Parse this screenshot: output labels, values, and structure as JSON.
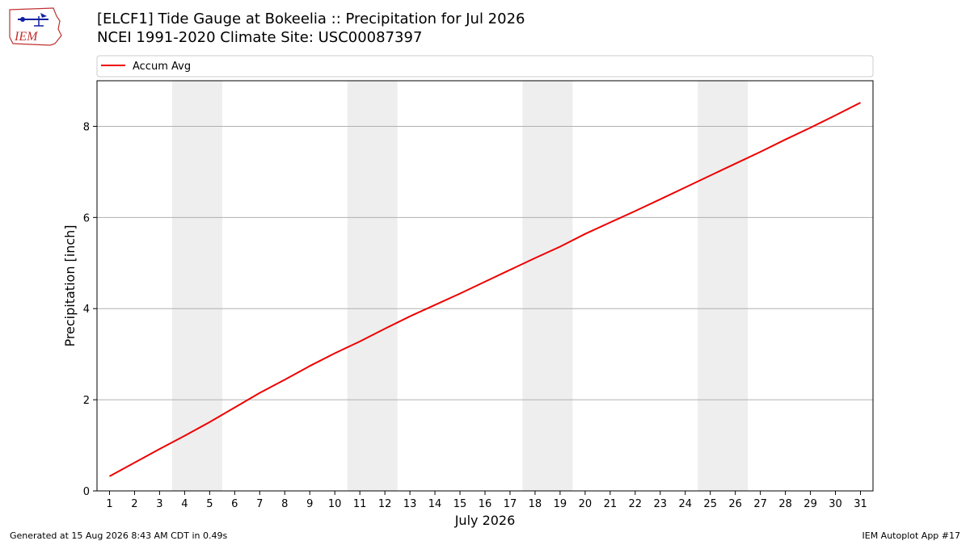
{
  "header": {
    "title_line1": "[ELCF1] Tide Gauge at Bokeelia :: Precipitation for Jul 2026",
    "title_line2": "NCEI 1991-2020 Climate Site: USC00087397"
  },
  "logo": {
    "text": "IEM",
    "icon": "iem-logo-icon"
  },
  "footer": {
    "generated": "Generated at 15 Aug 2026 8:43 AM CDT in 0.49s",
    "app": "IEM Autoplot App #17"
  },
  "colors": {
    "series": "#ee0000",
    "weekend_band": "#eeeeee",
    "grid": "#b0b0b0"
  },
  "chart_data": {
    "type": "line",
    "xlabel": "July 2026",
    "ylabel": "Precipitation [inch]",
    "xlim": [
      0.5,
      31.5
    ],
    "ylim": [
      0,
      9
    ],
    "yticks": [
      0,
      2,
      4,
      6,
      8
    ],
    "xticks": [
      1,
      2,
      3,
      4,
      5,
      6,
      7,
      8,
      9,
      10,
      11,
      12,
      13,
      14,
      15,
      16,
      17,
      18,
      19,
      20,
      21,
      22,
      23,
      24,
      25,
      26,
      27,
      28,
      29,
      30,
      31
    ],
    "grid": "y",
    "legend": "top",
    "shaded_day_ranges": [
      [
        3.5,
        5.5
      ],
      [
        10.5,
        12.5
      ],
      [
        17.5,
        19.5
      ],
      [
        24.5,
        26.5
      ]
    ],
    "series": [
      {
        "name": "Accum Avg",
        "x": [
          1,
          2,
          3,
          4,
          5,
          6,
          7,
          8,
          9,
          10,
          11,
          12,
          13,
          14,
          15,
          16,
          17,
          18,
          19,
          20,
          21,
          22,
          23,
          24,
          25,
          26,
          27,
          28,
          29,
          30,
          31
        ],
        "values": [
          0.32,
          0.62,
          0.92,
          1.21,
          1.51,
          1.83,
          2.15,
          2.44,
          2.74,
          3.02,
          3.28,
          3.56,
          3.83,
          4.08,
          4.33,
          4.59,
          4.85,
          5.11,
          5.36,
          5.64,
          5.89,
          6.14,
          6.4,
          6.66,
          6.92,
          7.18,
          7.44,
          7.71,
          7.97,
          8.24,
          8.52
        ]
      }
    ]
  }
}
